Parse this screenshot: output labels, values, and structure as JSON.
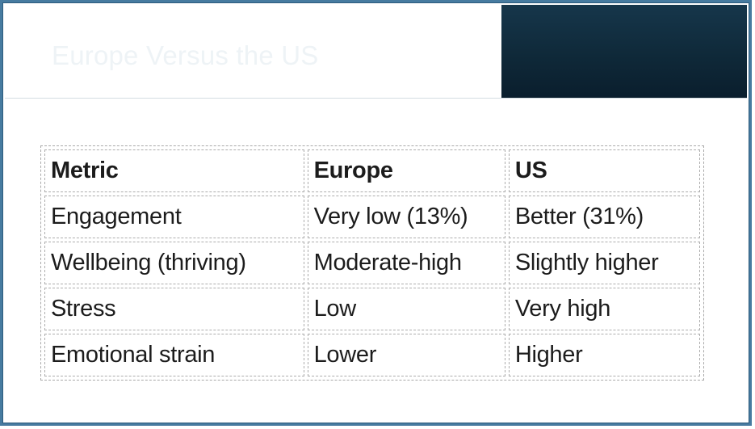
{
  "slide": {
    "title": "Europe Versus the US",
    "colors": {
      "slide_border": "#477ba0",
      "banner_top": "#1a4258",
      "banner_mid": "#1f5271",
      "banner_bottom": "#0a1f2e",
      "banner_accent_box": "#0f2939",
      "title_text": "#eef3f6",
      "table_cell_border": "#adadad",
      "table_text": "#1c1c1c"
    }
  },
  "table": {
    "columns": [
      "Metric",
      "Europe",
      "US"
    ],
    "rows": [
      [
        "Engagement",
        "Very low (13%)",
        "Better (31%)"
      ],
      [
        "Wellbeing (thriving)",
        "Moderate-high",
        "Slightly higher"
      ],
      [
        "Stress",
        "Low",
        "Very high"
      ],
      [
        "Emotional strain",
        "Lower",
        "Higher"
      ]
    ]
  }
}
